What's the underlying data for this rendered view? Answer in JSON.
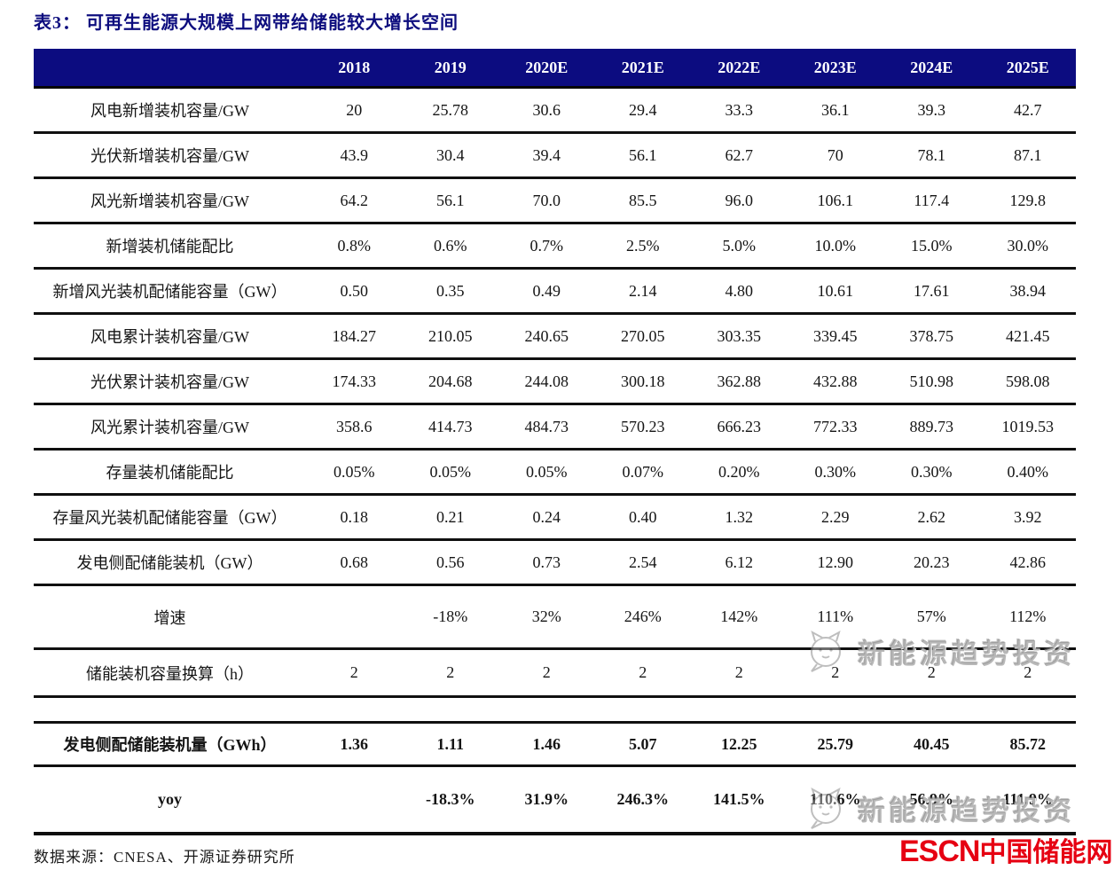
{
  "page": {
    "title": "表3：  可再生能源大规模上网带给储能较大增长空间",
    "source_note": "数据来源：CNESA、开源证券研究所"
  },
  "colors": {
    "header_bg": "#0c0c80",
    "title_text": "#0d0d7e",
    "rule": "#101010",
    "logo_red": "#e60012",
    "watermark_gray": "#808080"
  },
  "watermark": {
    "text": "新能源趋势投资",
    "icon": "wechat-cat-icon"
  },
  "logo": {
    "en": "ESCN",
    "cn": "中国储能网"
  },
  "table": {
    "columns": [
      "",
      "2018",
      "2019",
      "2020E",
      "2021E",
      "2022E",
      "2023E",
      "2024E",
      "2025E"
    ],
    "rows": [
      {
        "label": "风电新增装机容量/GW",
        "values": [
          "20",
          "25.78",
          "30.6",
          "29.4",
          "33.3",
          "36.1",
          "39.3",
          "42.7"
        ]
      },
      {
        "label": "光伏新增装机容量/GW",
        "values": [
          "43.9",
          "30.4",
          "39.4",
          "56.1",
          "62.7",
          "70",
          "78.1",
          "87.1"
        ]
      },
      {
        "label": "风光新增装机容量/GW",
        "values": [
          "64.2",
          "56.1",
          "70.0",
          "85.5",
          "96.0",
          "106.1",
          "117.4",
          "129.8"
        ]
      },
      {
        "label": "新增装机储能配比",
        "values": [
          "0.8%",
          "0.6%",
          "0.7%",
          "2.5%",
          "5.0%",
          "10.0%",
          "15.0%",
          "30.0%"
        ]
      },
      {
        "label": "新增风光装机配储能容量（GW）",
        "values": [
          "0.50",
          "0.35",
          "0.49",
          "2.14",
          "4.80",
          "10.61",
          "17.61",
          "38.94"
        ]
      },
      {
        "label": "风电累计装机容量/GW",
        "values": [
          "184.27",
          "210.05",
          "240.65",
          "270.05",
          "303.35",
          "339.45",
          "378.75",
          "421.45"
        ]
      },
      {
        "label": "光伏累计装机容量/GW",
        "values": [
          "174.33",
          "204.68",
          "244.08",
          "300.18",
          "362.88",
          "432.88",
          "510.98",
          "598.08"
        ]
      },
      {
        "label": "风光累计装机容量/GW",
        "values": [
          "358.6",
          "414.73",
          "484.73",
          "570.23",
          "666.23",
          "772.33",
          "889.73",
          "1019.53"
        ]
      },
      {
        "label": "存量装机储能配比",
        "values": [
          "0.05%",
          "0.05%",
          "0.05%",
          "0.07%",
          "0.20%",
          "0.30%",
          "0.30%",
          "0.40%"
        ]
      },
      {
        "label": "存量风光装机配储能容量（GW）",
        "values": [
          "0.18",
          "0.21",
          "0.24",
          "0.40",
          "1.32",
          "2.29",
          "2.62",
          "3.92"
        ]
      },
      {
        "label": "发电侧配储能装机（GW）",
        "values": [
          "0.68",
          "0.56",
          "0.73",
          "2.54",
          "6.12",
          "12.90",
          "20.23",
          "42.86"
        ]
      },
      {
        "label": "增速",
        "values": [
          "",
          "-18%",
          "32%",
          "246%",
          "142%",
          "111%",
          "57%",
          "112%"
        ],
        "variant": "tall"
      },
      {
        "label": "储能装机容量换算（h）",
        "values": [
          "2",
          "2",
          "2",
          "2",
          "2",
          "2",
          "2",
          "2"
        ],
        "variant": "conv"
      },
      {
        "label": "发电侧配储能装机量（GWh）",
        "values": [
          "1.36",
          "1.11",
          "1.46",
          "5.07",
          "12.25",
          "25.79",
          "40.45",
          "85.72"
        ],
        "bold": true,
        "variant": "summary-main",
        "gap_before": true
      },
      {
        "label": "yoy",
        "values": [
          "",
          "-18.3%",
          "31.9%",
          "246.3%",
          "141.5%",
          "110.6%",
          "56.9%",
          "111.9%"
        ],
        "bold": true,
        "variant": "summary-yoy"
      }
    ]
  }
}
